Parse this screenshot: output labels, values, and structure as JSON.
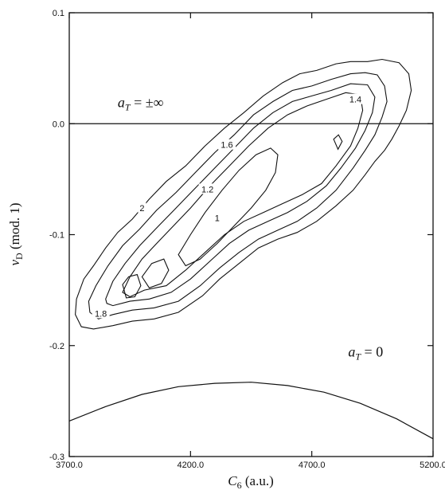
{
  "chart_data": {
    "type": "contour",
    "title": "",
    "xlabel": "C",
    "xlabel_sub": "6",
    "xlabel_unit": " (a.u.)",
    "ylabel": "v",
    "ylabel_sub": "D",
    "ylabel_unit": " (mod. 1)",
    "xlim": [
      3700.0,
      5200.0
    ],
    "ylim": [
      -0.3,
      0.1
    ],
    "x_ticks": [
      {
        "value": 3700,
        "label": "3700.0"
      },
      {
        "value": 4200,
        "label": "4200.0"
      },
      {
        "value": 4700,
        "label": "4700.0"
      },
      {
        "value": 5200,
        "label": "5200.0"
      }
    ],
    "y_ticks": [
      {
        "value": 0.1,
        "label": "0.1"
      },
      {
        "value": 0.0,
        "label": "0.0"
      },
      {
        "value": -0.1,
        "label": "-0.1"
      },
      {
        "value": -0.2,
        "label": "-0.2"
      },
      {
        "value": -0.3,
        "label": "-0.3"
      }
    ],
    "grid": false,
    "reference_lines": [
      {
        "name": "a_T = ±∞",
        "type": "horizontal",
        "y": 0.0
      },
      {
        "name": "a_T = 0",
        "type": "curve",
        "points": [
          [
            3700,
            -0.268
          ],
          [
            3850,
            -0.255
          ],
          [
            4000,
            -0.244
          ],
          [
            4150,
            -0.237
          ],
          [
            4300,
            -0.234
          ],
          [
            4450,
            -0.233
          ],
          [
            4600,
            -0.236
          ],
          [
            4750,
            -0.242
          ],
          [
            4900,
            -0.252
          ],
          [
            5050,
            -0.266
          ],
          [
            5200,
            -0.284
          ]
        ]
      }
    ],
    "annotations": [
      {
        "text": "a",
        "sub": "T",
        "rest": " = ±∞",
        "x": 3900,
        "y": 0.015
      },
      {
        "text": "a",
        "sub": "T",
        "rest": " = 0",
        "x": 4850,
        "y": -0.21
      }
    ],
    "contour_levels": [
      1.0,
      1.2,
      1.4,
      1.6,
      1.8,
      2.0
    ],
    "contours": [
      {
        "level": 2.0,
        "label": "2",
        "points": [
          [
            3730,
            -0.158
          ],
          [
            3760,
            -0.14
          ],
          [
            3800,
            -0.128
          ],
          [
            3850,
            -0.112
          ],
          [
            3900,
            -0.098
          ],
          [
            3960,
            -0.086
          ],
          [
            4030,
            -0.068
          ],
          [
            4100,
            -0.052
          ],
          [
            4180,
            -0.038
          ],
          [
            4260,
            -0.02
          ],
          [
            4340,
            -0.004
          ],
          [
            4420,
            0.01
          ],
          [
            4500,
            0.025
          ],
          [
            4580,
            0.037
          ],
          [
            4650,
            0.045
          ],
          [
            4720,
            0.048
          ],
          [
            4800,
            0.054
          ],
          [
            4860,
            0.056
          ],
          [
            4930,
            0.056
          ],
          [
            4990,
            0.058
          ],
          [
            5060,
            0.055
          ],
          [
            5100,
            0.045
          ],
          [
            5110,
            0.03
          ],
          [
            5090,
            0.012
          ],
          [
            5060,
            -0.002
          ],
          [
            5030,
            -0.014
          ],
          [
            5000,
            -0.024
          ],
          [
            4960,
            -0.034
          ],
          [
            4920,
            -0.046
          ],
          [
            4870,
            -0.06
          ],
          [
            4800,
            -0.074
          ],
          [
            4720,
            -0.088
          ],
          [
            4640,
            -0.098
          ],
          [
            4560,
            -0.104
          ],
          [
            4480,
            -0.112
          ],
          [
            4400,
            -0.126
          ],
          [
            4320,
            -0.14
          ],
          [
            4250,
            -0.155
          ],
          [
            4150,
            -0.17
          ],
          [
            4050,
            -0.176
          ],
          [
            3960,
            -0.178
          ],
          [
            3880,
            -0.182
          ],
          [
            3800,
            -0.185
          ],
          [
            3750,
            -0.183
          ],
          [
            3725,
            -0.172
          ],
          [
            3730,
            -0.158
          ]
        ],
        "label_at": [
          4000,
          -0.076
        ]
      },
      {
        "level": 1.8,
        "label": "1.8",
        "points": [
          [
            3780,
            -0.16
          ],
          [
            3810,
            -0.146
          ],
          [
            3860,
            -0.128
          ],
          [
            3920,
            -0.11
          ],
          [
            3990,
            -0.095
          ],
          [
            4060,
            -0.078
          ],
          [
            4140,
            -0.062
          ],
          [
            4220,
            -0.044
          ],
          [
            4300,
            -0.026
          ],
          [
            4380,
            -0.01
          ],
          [
            4460,
            0.008
          ],
          [
            4540,
            0.02
          ],
          [
            4620,
            0.03
          ],
          [
            4700,
            0.034
          ],
          [
            4780,
            0.04
          ],
          [
            4860,
            0.045
          ],
          [
            4920,
            0.046
          ],
          [
            4970,
            0.044
          ],
          [
            5000,
            0.034
          ],
          [
            5010,
            0.02
          ],
          [
            4990,
            0.006
          ],
          [
            4960,
            -0.01
          ],
          [
            4920,
            -0.024
          ],
          [
            4870,
            -0.04
          ],
          [
            4800,
            -0.06
          ],
          [
            4720,
            -0.076
          ],
          [
            4640,
            -0.088
          ],
          [
            4560,
            -0.096
          ],
          [
            4480,
            -0.104
          ],
          [
            4400,
            -0.116
          ],
          [
            4320,
            -0.13
          ],
          [
            4240,
            -0.146
          ],
          [
            4150,
            -0.16
          ],
          [
            4050,
            -0.166
          ],
          [
            3960,
            -0.168
          ],
          [
            3880,
            -0.172
          ],
          [
            3820,
            -0.176
          ],
          [
            3785,
            -0.17
          ],
          [
            3780,
            -0.16
          ]
        ],
        "label_at": [
          3830,
          -0.171
        ]
      },
      {
        "level": 1.6,
        "label": "1.6",
        "points": [
          [
            3850,
            -0.158
          ],
          [
            3880,
            -0.142
          ],
          [
            3930,
            -0.126
          ],
          [
            3990,
            -0.11
          ],
          [
            4060,
            -0.094
          ],
          [
            4140,
            -0.076
          ],
          [
            4220,
            -0.058
          ],
          [
            4300,
            -0.04
          ],
          [
            4380,
            -0.022
          ],
          [
            4460,
            -0.004
          ],
          [
            4540,
            0.01
          ],
          [
            4620,
            0.02
          ],
          [
            4700,
            0.025
          ],
          [
            4780,
            0.03
          ],
          [
            4860,
            0.036
          ],
          [
            4930,
            0.035
          ],
          [
            4960,
            0.024
          ],
          [
            4950,
            0.01
          ],
          [
            4920,
            -0.006
          ],
          [
            4880,
            -0.022
          ],
          [
            4820,
            -0.04
          ],
          [
            4760,
            -0.056
          ],
          [
            4680,
            -0.07
          ],
          [
            4600,
            -0.08
          ],
          [
            4520,
            -0.088
          ],
          [
            4440,
            -0.096
          ],
          [
            4360,
            -0.108
          ],
          [
            4280,
            -0.124
          ],
          [
            4200,
            -0.14
          ],
          [
            4120,
            -0.152
          ],
          [
            4030,
            -0.158
          ],
          [
            3950,
            -0.16
          ],
          [
            3880,
            -0.164
          ],
          [
            3855,
            -0.162
          ],
          [
            3850,
            -0.158
          ]
        ],
        "label_at": [
          4350,
          -0.019
        ]
      },
      {
        "level": 1.4,
        "label": "1.4",
        "points": [
          [
            3920,
            -0.152
          ],
          [
            3950,
            -0.138
          ],
          [
            4000,
            -0.122
          ],
          [
            4060,
            -0.108
          ],
          [
            4130,
            -0.092
          ],
          [
            4200,
            -0.076
          ],
          [
            4280,
            -0.056
          ],
          [
            4360,
            -0.038
          ],
          [
            4440,
            -0.02
          ],
          [
            4520,
            -0.004
          ],
          [
            4600,
            0.008
          ],
          [
            4680,
            0.016
          ],
          [
            4760,
            0.022
          ],
          [
            4840,
            0.028
          ],
          [
            4900,
            0.026
          ],
          [
            4910,
            0.012
          ],
          [
            4890,
            -0.004
          ],
          [
            4860,
            -0.02
          ],
          [
            4800,
            -0.038
          ],
          [
            4740,
            -0.054
          ],
          [
            4660,
            -0.064
          ],
          [
            4580,
            -0.072
          ],
          [
            4500,
            -0.08
          ],
          [
            4420,
            -0.088
          ],
          [
            4340,
            -0.1
          ],
          [
            4260,
            -0.116
          ],
          [
            4180,
            -0.132
          ],
          [
            4100,
            -0.146
          ],
          [
            4010,
            -0.15
          ],
          [
            3950,
            -0.156
          ],
          [
            3920,
            -0.152
          ]
        ],
        "label_at": [
          4880,
          0.022
        ]
      },
      {
        "level": 1.2,
        "label": "1.2",
        "points": [
          [
            4150,
            -0.118
          ],
          [
            4200,
            -0.1
          ],
          [
            4260,
            -0.08
          ],
          [
            4330,
            -0.06
          ],
          [
            4400,
            -0.042
          ],
          [
            4470,
            -0.028
          ],
          [
            4530,
            -0.022
          ],
          [
            4560,
            -0.028
          ],
          [
            4550,
            -0.044
          ],
          [
            4510,
            -0.06
          ],
          [
            4450,
            -0.076
          ],
          [
            4380,
            -0.092
          ],
          [
            4310,
            -0.108
          ],
          [
            4240,
            -0.122
          ],
          [
            4180,
            -0.128
          ],
          [
            4150,
            -0.118
          ]
        ],
        "label_at": [
          4270,
          -0.059
        ]
      },
      {
        "level": 1.0,
        "label": "1",
        "points": [
          [
            4000,
            -0.138
          ],
          [
            4040,
            -0.126
          ],
          [
            4090,
            -0.122
          ],
          [
            4110,
            -0.132
          ],
          [
            4080,
            -0.144
          ],
          [
            4030,
            -0.148
          ],
          [
            4000,
            -0.138
          ]
        ],
        "label_at": [
          4310,
          -0.085
        ]
      }
    ],
    "minima": [
      {
        "points": [
          [
            3920,
            -0.145
          ],
          [
            3945,
            -0.138
          ],
          [
            3980,
            -0.136
          ],
          [
            3995,
            -0.146
          ],
          [
            3970,
            -0.156
          ],
          [
            3935,
            -0.157
          ],
          [
            3920,
            -0.145
          ]
        ]
      },
      {
        "points": [
          [
            4790,
            -0.014
          ],
          [
            4810,
            -0.01
          ],
          [
            4825,
            -0.016
          ],
          [
            4808,
            -0.023
          ],
          [
            4790,
            -0.014
          ]
        ]
      }
    ]
  }
}
